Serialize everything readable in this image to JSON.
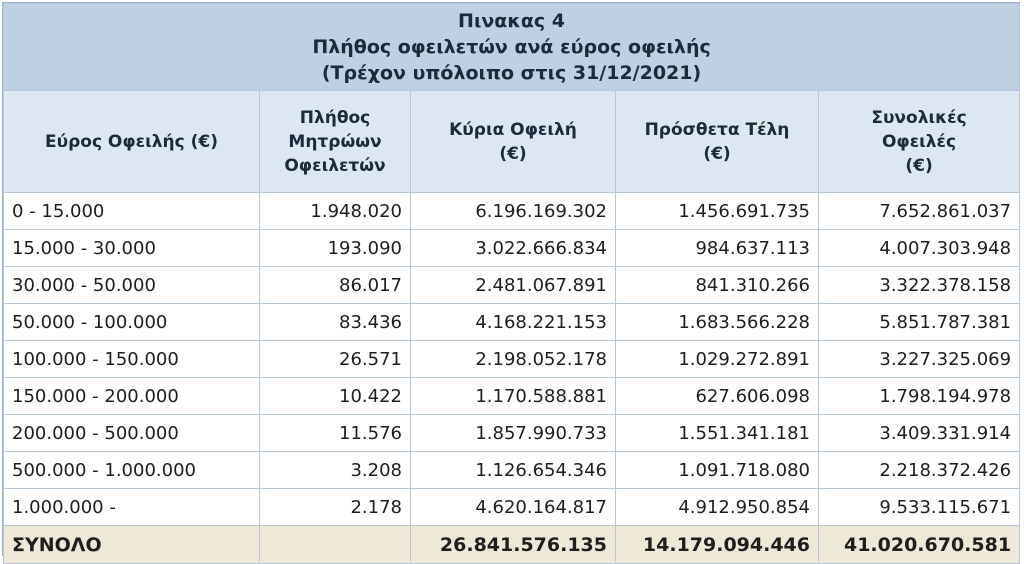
{
  "title": {
    "line1": "Πινακας 4",
    "line2": "Πλήθος οφειλετών ανά εύρος οφειλής",
    "line3": "(Τρέχον υπόλοιπο στις 31/12/2021)"
  },
  "columns": [
    {
      "lines": [
        "Εύρος Οφειλής (€)"
      ]
    },
    {
      "lines": [
        "Πλήθος",
        "Μητρώων",
        "Οφειλετών"
      ]
    },
    {
      "lines": [
        "Κύρια Οφειλή",
        "(€)"
      ]
    },
    {
      "lines": [
        "Πρόσθετα Τέλη",
        "(€)"
      ]
    },
    {
      "lines": [
        "Συνολικές",
        "Οφειλές",
        "(€)"
      ]
    }
  ],
  "rows": [
    [
      "0 - 15.000",
      "1.948.020",
      "6.196.169.302",
      "1.456.691.735",
      "7.652.861.037"
    ],
    [
      "15.000 - 30.000",
      "193.090",
      "3.022.666.834",
      "984.637.113",
      "4.007.303.948"
    ],
    [
      "30.000 - 50.000",
      "86.017",
      "2.481.067.891",
      "841.310.266",
      "3.322.378.158"
    ],
    [
      "50.000 - 100.000",
      "83.436",
      "4.168.221.153",
      "1.683.566.228",
      "5.851.787.381"
    ],
    [
      "100.000 - 150.000",
      "26.571",
      "2.198.052.178",
      "1.029.272.891",
      "3.227.325.069"
    ],
    [
      "150.000 - 200.000",
      "10.422",
      "1.170.588.881",
      "627.606.098",
      "1.798.194.978"
    ],
    [
      "200.000 - 500.000",
      "11.576",
      "1.857.990.733",
      "1.551.341.181",
      "3.409.331.914"
    ],
    [
      "500.000 - 1.000.000",
      "3.208",
      "1.126.654.346",
      "1.091.718.080",
      "2.218.372.426"
    ],
    [
      "1.000.000 -",
      "2.178",
      "4.620.164.817",
      "4.912.950.854",
      "9.533.115.671"
    ]
  ],
  "total": {
    "label": "ΣΥΝΟΛΟ",
    "count": "",
    "principal": "26.841.576.135",
    "fees": "14.179.094.446",
    "overall": "41.020.670.581"
  }
}
